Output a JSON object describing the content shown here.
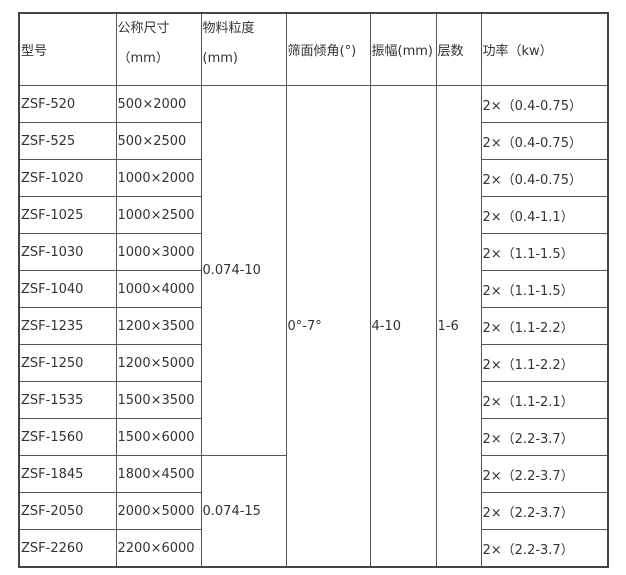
{
  "headers": {
    "model": "型号",
    "size1": "公称尺寸",
    "size2": "（mm）",
    "grain1": "物料粒度",
    "grain2": "(mm)",
    "angle": "筛面倾角(°)",
    "amp": "振幅(mm)",
    "layers": "层数",
    "power": "功率（kw）"
  },
  "merged": {
    "grain_a": "0.074-10",
    "grain_b": "0.074-15",
    "angle": "0°-7°",
    "amp": "4-10",
    "layers": "1-6"
  },
  "rows": [
    {
      "model": "ZSF-520",
      "size": "500×2000",
      "power": "2×（0.4-0.75）"
    },
    {
      "model": "ZSF-525",
      "size": "500×2500",
      "power": "2×（0.4-0.75）"
    },
    {
      "model": "ZSF-1020",
      "size": "1000×2000",
      "power": "2×（0.4-0.75）"
    },
    {
      "model": "ZSF-1025",
      "size": "1000×2500",
      "power": "2×（0.4-1.1）"
    },
    {
      "model": "ZSF-1030",
      "size": "1000×3000",
      "power": "2×（1.1-1.5）"
    },
    {
      "model": "ZSF-1040",
      "size": "1000×4000",
      "power": "2×（1.1-1.5）"
    },
    {
      "model": "ZSF-1235",
      "size": "1200×3500",
      "power": "2×（1.1-2.2）"
    },
    {
      "model": "ZSF-1250",
      "size": "1200×5000",
      "power": "2×（1.1-2.2）"
    },
    {
      "model": "ZSF-1535",
      "size": "1500×3500",
      "power": "2×（1.1-2.1）"
    },
    {
      "model": "ZSF-1560",
      "size": "1500×6000",
      "power": "2×（2.2-3.7）"
    },
    {
      "model": "ZSF-1845",
      "size": "1800×4500",
      "power": "2×（2.2-3.7）"
    },
    {
      "model": "ZSF-2050",
      "size": "2000×5000",
      "power": "2×（2.2-3.7）"
    },
    {
      "model": "ZSF-2260",
      "size": "2200×6000",
      "power": "2×（2.2-3.7）"
    }
  ]
}
